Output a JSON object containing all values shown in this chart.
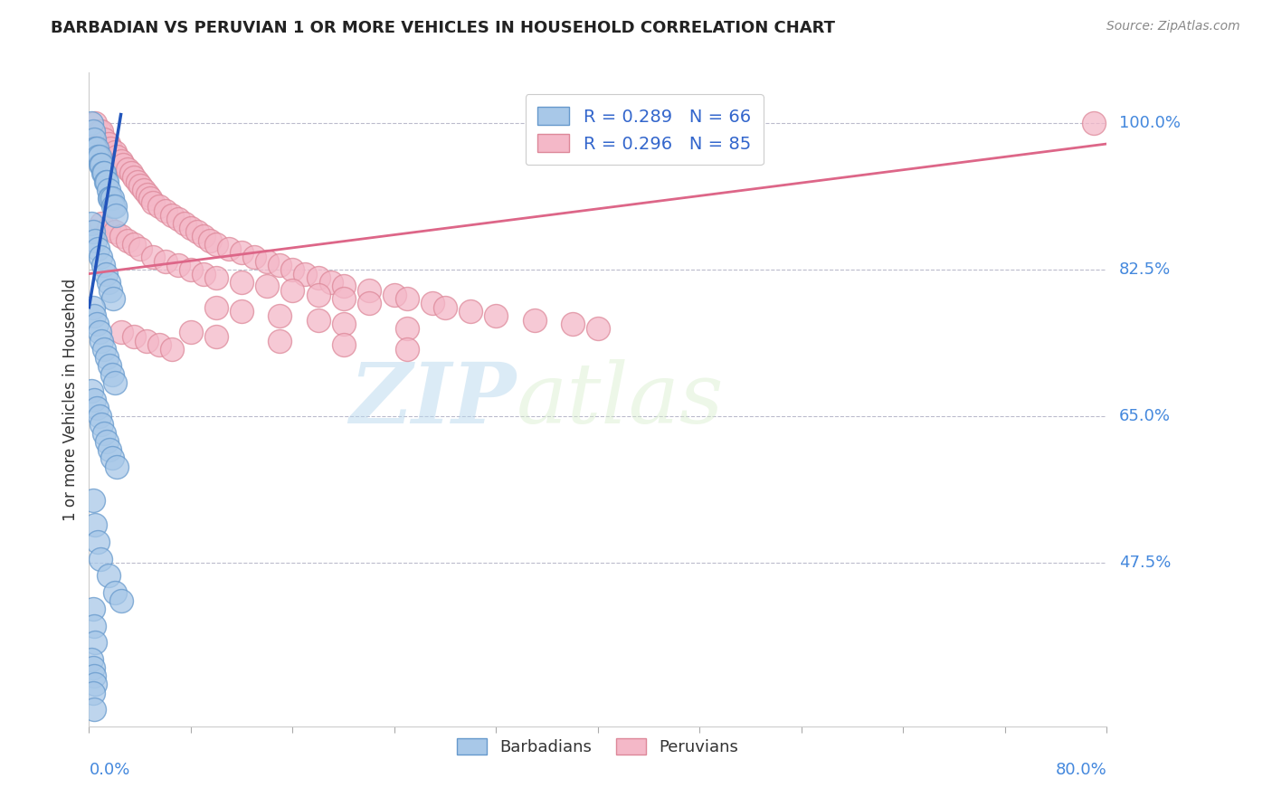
{
  "title": "BARBADIAN VS PERUVIAN 1 OR MORE VEHICLES IN HOUSEHOLD CORRELATION CHART",
  "source": "Source: ZipAtlas.com",
  "ylabel": "1 or more Vehicles in Household",
  "ytick_labels": [
    "100.0%",
    "82.5%",
    "65.0%",
    "47.5%"
  ],
  "ytick_values": [
    1.0,
    0.825,
    0.65,
    0.475
  ],
  "barbadian_R": "R = 0.289",
  "barbadian_N": "N = 66",
  "peruvian_R": "R = 0.296",
  "peruvian_N": "N = 85",
  "legend_labels": [
    "Barbadians",
    "Peruvians"
  ],
  "barbadian_color": "#a8c8e8",
  "peruvian_color": "#f4b8c8",
  "barbadian_edge_color": "#6699cc",
  "peruvian_edge_color": "#dd8899",
  "barbadian_line_color": "#2255bb",
  "peruvian_line_color": "#dd6688",
  "watermark_color": "#d0e8f4",
  "background_color": "#ffffff",
  "xmin": 0.0,
  "xmax": 0.8,
  "ymin": 0.28,
  "ymax": 1.06,
  "barbadian_x": [
    0.002,
    0.003,
    0.004,
    0.005,
    0.006,
    0.007,
    0.008,
    0.009,
    0.01,
    0.011,
    0.012,
    0.013,
    0.014,
    0.015,
    0.016,
    0.017,
    0.018,
    0.019,
    0.02,
    0.021,
    0.002,
    0.003,
    0.005,
    0.007,
    0.009,
    0.011,
    0.013,
    0.015,
    0.017,
    0.019,
    0.003,
    0.004,
    0.006,
    0.008,
    0.01,
    0.012,
    0.014,
    0.016,
    0.018,
    0.02,
    0.002,
    0.004,
    0.006,
    0.008,
    0.01,
    0.012,
    0.014,
    0.016,
    0.018,
    0.022,
    0.003,
    0.005,
    0.007,
    0.009,
    0.015,
    0.02,
    0.025,
    0.003,
    0.004,
    0.005,
    0.002,
    0.003,
    0.004,
    0.005,
    0.003,
    0.004
  ],
  "barbadian_y": [
    1.0,
    0.99,
    0.98,
    0.97,
    0.97,
    0.96,
    0.96,
    0.95,
    0.95,
    0.94,
    0.94,
    0.93,
    0.93,
    0.92,
    0.91,
    0.91,
    0.91,
    0.9,
    0.9,
    0.89,
    0.88,
    0.87,
    0.86,
    0.85,
    0.84,
    0.83,
    0.82,
    0.81,
    0.8,
    0.79,
    0.78,
    0.77,
    0.76,
    0.75,
    0.74,
    0.73,
    0.72,
    0.71,
    0.7,
    0.69,
    0.68,
    0.67,
    0.66,
    0.65,
    0.64,
    0.63,
    0.62,
    0.61,
    0.6,
    0.59,
    0.55,
    0.52,
    0.5,
    0.48,
    0.46,
    0.44,
    0.43,
    0.42,
    0.4,
    0.38,
    0.36,
    0.35,
    0.34,
    0.33,
    0.32,
    0.3
  ],
  "peruvian_x": [
    0.005,
    0.008,
    0.01,
    0.012,
    0.015,
    0.017,
    0.02,
    0.022,
    0.025,
    0.027,
    0.03,
    0.033,
    0.035,
    0.038,
    0.04,
    0.043,
    0.046,
    0.048,
    0.05,
    0.055,
    0.06,
    0.065,
    0.07,
    0.075,
    0.08,
    0.085,
    0.09,
    0.095,
    0.1,
    0.11,
    0.12,
    0.13,
    0.14,
    0.15,
    0.16,
    0.17,
    0.18,
    0.19,
    0.2,
    0.22,
    0.24,
    0.25,
    0.27,
    0.28,
    0.3,
    0.32,
    0.35,
    0.38,
    0.4,
    0.79,
    0.01,
    0.015,
    0.02,
    0.025,
    0.03,
    0.035,
    0.04,
    0.05,
    0.06,
    0.07,
    0.08,
    0.09,
    0.1,
    0.12,
    0.14,
    0.16,
    0.18,
    0.2,
    0.22,
    0.1,
    0.12,
    0.15,
    0.18,
    0.2,
    0.25,
    0.08,
    0.1,
    0.15,
    0.2,
    0.25,
    0.025,
    0.035,
    0.045,
    0.055,
    0.065
  ],
  "peruvian_y": [
    1.0,
    0.99,
    0.99,
    0.98,
    0.975,
    0.97,
    0.965,
    0.96,
    0.955,
    0.95,
    0.945,
    0.94,
    0.935,
    0.93,
    0.925,
    0.92,
    0.915,
    0.91,
    0.905,
    0.9,
    0.895,
    0.89,
    0.885,
    0.88,
    0.875,
    0.87,
    0.865,
    0.86,
    0.855,
    0.85,
    0.845,
    0.84,
    0.835,
    0.83,
    0.825,
    0.82,
    0.815,
    0.81,
    0.805,
    0.8,
    0.795,
    0.79,
    0.785,
    0.78,
    0.775,
    0.77,
    0.765,
    0.76,
    0.755,
    1.0,
    0.88,
    0.875,
    0.87,
    0.865,
    0.86,
    0.855,
    0.85,
    0.84,
    0.835,
    0.83,
    0.825,
    0.82,
    0.815,
    0.81,
    0.805,
    0.8,
    0.795,
    0.79,
    0.785,
    0.78,
    0.775,
    0.77,
    0.765,
    0.76,
    0.755,
    0.75,
    0.745,
    0.74,
    0.735,
    0.73,
    0.75,
    0.745,
    0.74,
    0.735,
    0.73
  ],
  "barb_line_x": [
    0.0,
    0.025
  ],
  "barb_line_y": [
    0.78,
    1.01
  ],
  "perv_line_x": [
    0.0,
    0.8
  ],
  "perv_line_y": [
    0.82,
    0.975
  ]
}
